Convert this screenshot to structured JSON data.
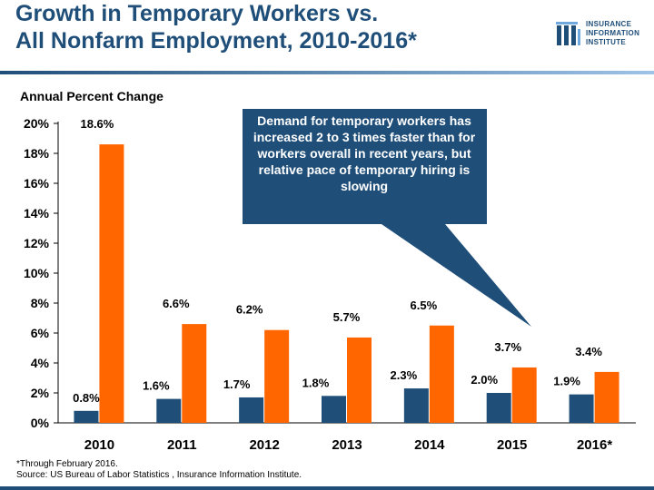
{
  "title_line1": "Growth in Temporary Workers vs.",
  "title_line2": "All Nonfarm Employment, 2010-2016*",
  "logo": {
    "icon": "iii-logo-icon",
    "line1": "INSURANCE",
    "line2": "INFORMATION",
    "line3": "INSTITUTE"
  },
  "subtitle": "Annual Percent Change",
  "callout": "Demand for temporary workers has increased 2 to 3 times faster than for workers overall in recent years, but relative pace of temporary hiring is slowing",
  "footnote_line1": "*Through February 2016.",
  "footnote_line2": "Source: US Bureau of Labor Statistics , Insurance Information Institute.",
  "colors": {
    "title": "#1f4e79",
    "all_workers": "#1f4e79",
    "temporary_workers": "#ff6600",
    "callout": "#1f4e79"
  },
  "chart_data": {
    "type": "bar",
    "title": "Growth in Temporary Workers vs. All Nonfarm Employment, 2010-2016*",
    "ylabel": "Annual Percent Change",
    "xlabel": "",
    "ylim": [
      0,
      20
    ],
    "yticks": [
      "0%",
      "2%",
      "4%",
      "6%",
      "8%",
      "10%",
      "12%",
      "14%",
      "16%",
      "18%",
      "20%"
    ],
    "grid": false,
    "legend": "none",
    "categories": [
      "2010",
      "2011",
      "2012",
      "2013",
      "2014",
      "2015",
      "2016*"
    ],
    "series": [
      {
        "values": [
          0.8,
          1.6,
          1.7,
          1.8,
          2.3,
          2.0,
          1.9
        ],
        "labels": [
          "0.8%",
          "1.6%",
          "1.7%",
          "1.8%",
          "2.3%",
          "2.0%",
          "1.9%"
        ]
      },
      {
        "values": [
          18.6,
          6.6,
          6.2,
          5.7,
          6.5,
          3.7,
          3.4
        ],
        "labels": [
          "18.6%",
          "6.6%",
          "6.2%",
          "5.7%",
          "6.5%",
          "3.7%",
          "3.4%"
        ]
      }
    ]
  }
}
